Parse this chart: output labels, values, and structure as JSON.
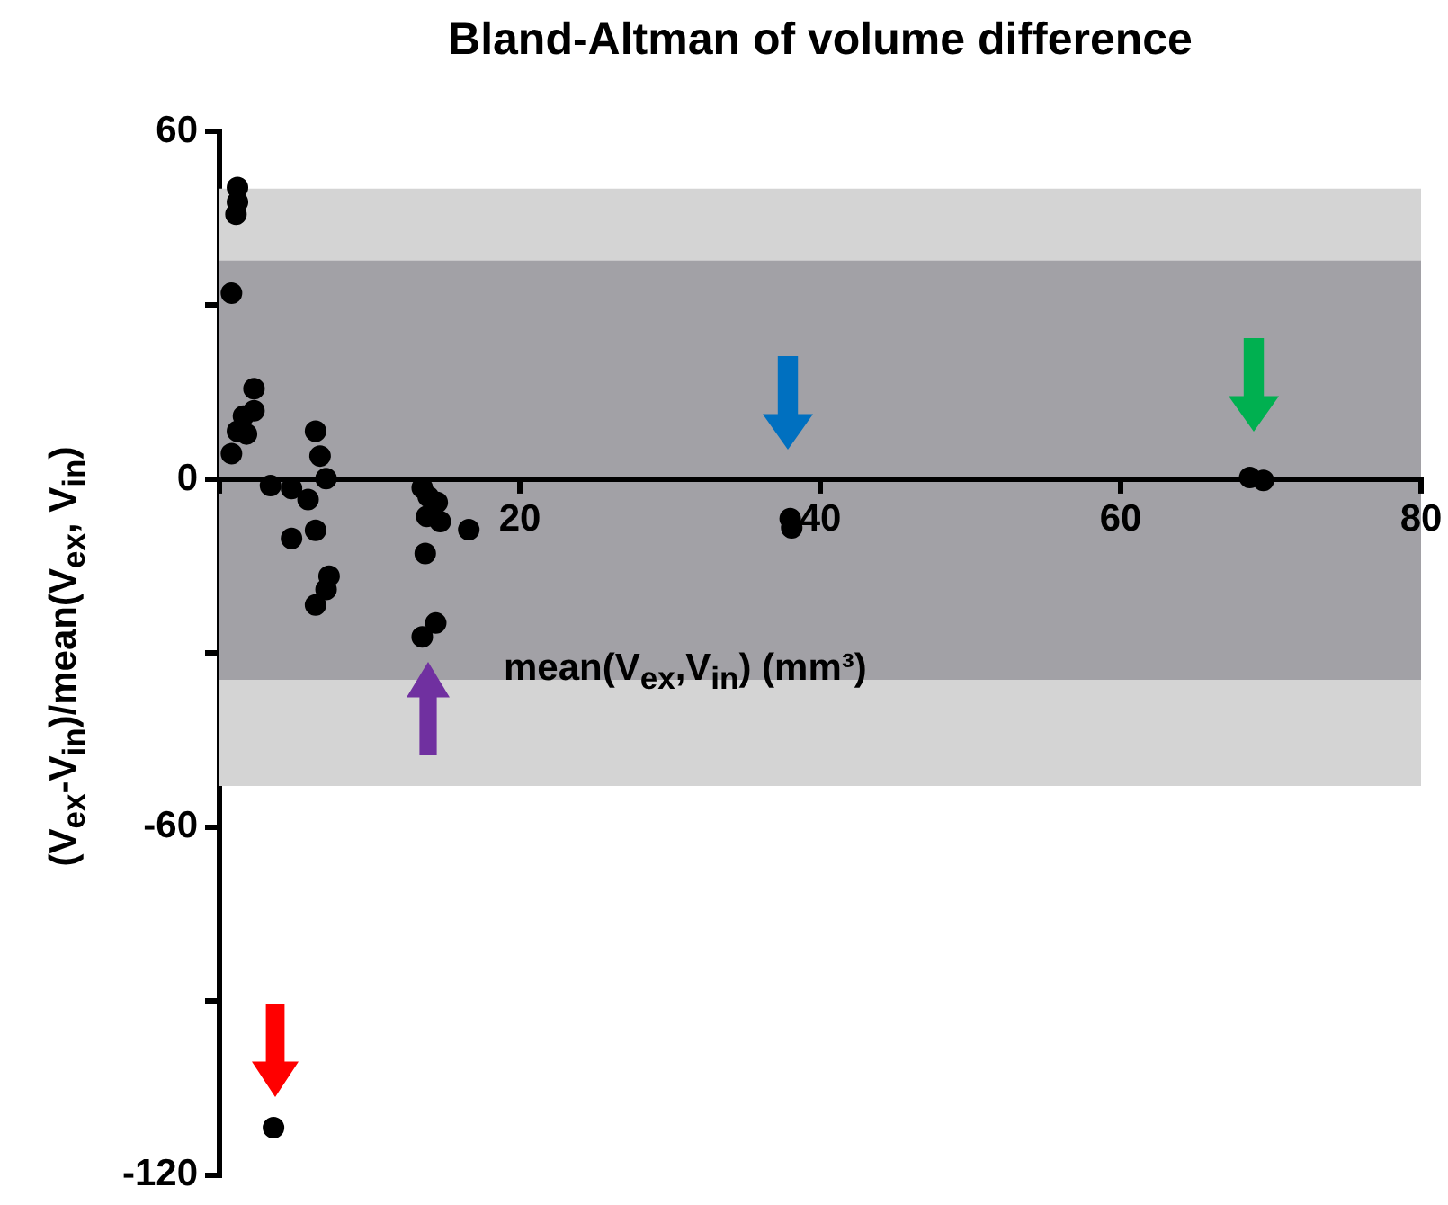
{
  "chart_data": {
    "type": "scatter",
    "title": "Bland-Altman of volume difference",
    "xlabel": "mean(V$_{ex}$,V$_{in}$)  (mm³)",
    "ylabel": "(V$_{ex}$-V$_{in}$)/mean(V$_{ex}$, V$_{in}$)",
    "xlim": [
      0,
      80
    ],
    "xticks": [
      {
        "value": 0,
        "label": null
      },
      20,
      40,
      60,
      80
    ],
    "ylim": [
      -120,
      60
    ],
    "yticks": [
      -120,
      {
        "value": -90,
        "label": null
      },
      -60,
      {
        "value": -30,
        "label": null
      },
      0,
      {
        "value": 30,
        "label": null
      },
      60
    ],
    "grid": false,
    "legend": false,
    "marker": "circle",
    "bands": [
      {
        "axis": "y",
        "from": -52.9,
        "to": 50.1,
        "color": "#d4d4d4"
      },
      {
        "axis": "y",
        "from": -34.6,
        "to": 37.7,
        "color": "#a2a1a6"
      }
    ],
    "series": [
      {
        "color": "#000000",
        "x": [
          1.2,
          1.2,
          1.1,
          0.8,
          2.3,
          2.3,
          1.6,
          1.2,
          1.8,
          0.8,
          3.4,
          4.8,
          4.8,
          5.9,
          6.4,
          6.7,
          7.1,
          6.4,
          7.3,
          7.1,
          6.4,
          13.5,
          13.9,
          14.5,
          13.8,
          14.7,
          16.6,
          13.7,
          14.4,
          13.5,
          38.0,
          38.1,
          68.6,
          69.5,
          3.6
        ],
        "values": [
          50.3,
          47.8,
          45.7,
          32.1,
          15.6,
          11.8,
          10.9,
          8.3,
          7.8,
          4.4,
          -1.1,
          -1.6,
          -10.2,
          -3.5,
          8.3,
          4.0,
          0.1,
          -8.8,
          -16.7,
          -19.0,
          -21.7,
          -1.5,
          -3.0,
          -4.0,
          -6.4,
          -7.3,
          -8.7,
          -12.8,
          -24.8,
          -27.2,
          -6.8,
          -8.4,
          0.3,
          -0.2,
          -111.8
        ]
      }
    ]
  }
}
